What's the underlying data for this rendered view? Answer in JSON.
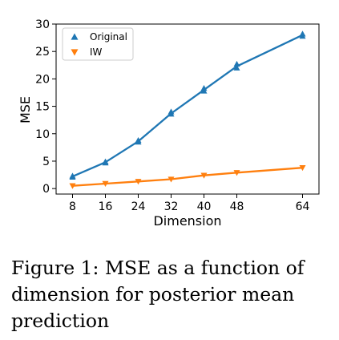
{
  "chart_data": {
    "type": "line",
    "xlabel": "Dimension",
    "ylabel": "MSE",
    "x": [
      8,
      16,
      24,
      32,
      40,
      48,
      64
    ],
    "xticks": [
      8,
      16,
      24,
      32,
      40,
      48,
      64
    ],
    "yticks": [
      0,
      5,
      10,
      15,
      20,
      25,
      30
    ],
    "xlim": [
      4,
      68
    ],
    "ylim": [
      -1,
      30
    ],
    "legend_position": "top-left",
    "grid": false,
    "series": [
      {
        "name": "Original",
        "color": "#1f77b4",
        "marker": "triangle-up",
        "values": [
          2.2,
          4.8,
          8.6,
          13.7,
          18.0,
          22.3,
          28.0
        ],
        "points": [
          {
            "x": 8,
            "y": 2.1
          },
          {
            "x": 8,
            "y": 2.3
          },
          {
            "x": 16,
            "y": 4.7
          },
          {
            "x": 16,
            "y": 4.9
          },
          {
            "x": 24,
            "y": 8.5
          },
          {
            "x": 24,
            "y": 8.8
          },
          {
            "x": 32,
            "y": 13.6
          },
          {
            "x": 32,
            "y": 14.0
          },
          {
            "x": 40,
            "y": 17.8
          },
          {
            "x": 40,
            "y": 18.3
          },
          {
            "x": 48,
            "y": 22.0
          },
          {
            "x": 48,
            "y": 22.7
          },
          {
            "x": 64,
            "y": 27.8
          },
          {
            "x": 64,
            "y": 28.2
          }
        ]
      },
      {
        "name": "IW",
        "color": "#ff7f0e",
        "marker": "triangle-down",
        "values": [
          0.5,
          0.9,
          1.3,
          1.7,
          2.4,
          2.9,
          3.8
        ],
        "points": [
          {
            "x": 8,
            "y": 0.5
          },
          {
            "x": 16,
            "y": 0.9
          },
          {
            "x": 24,
            "y": 1.3
          },
          {
            "x": 32,
            "y": 1.7
          },
          {
            "x": 40,
            "y": 2.4
          },
          {
            "x": 48,
            "y": 2.9
          },
          {
            "x": 64,
            "y": 3.8
          }
        ]
      }
    ]
  },
  "caption": "Figure 1: MSE as a function of dimension for posterior mean prediction"
}
